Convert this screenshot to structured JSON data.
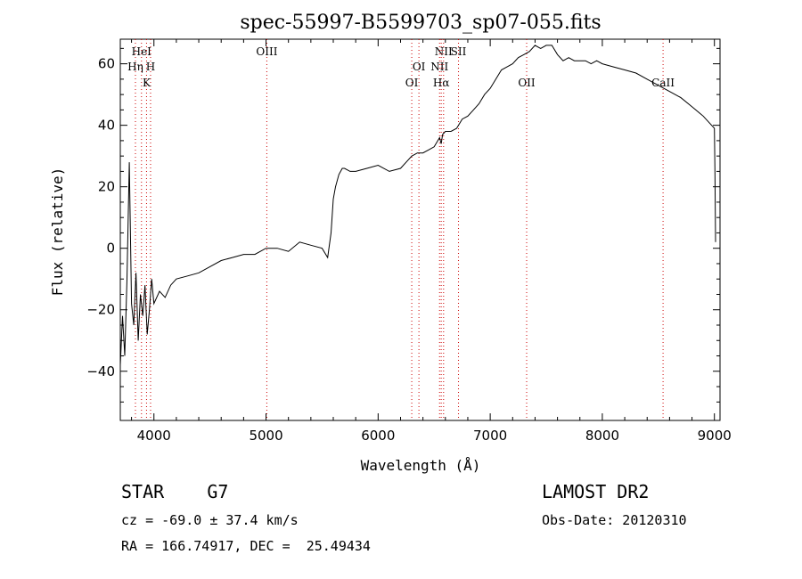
{
  "chart_data": {
    "type": "line",
    "title": "spec-55997-B5599703_sp07-055.fits",
    "xlabel": "Wavelength (Å)",
    "ylabel": "Flux (relative)",
    "xlim": [
      3700,
      9050
    ],
    "ylim": [
      -56,
      68
    ],
    "xticks": [
      4000,
      5000,
      6000,
      7000,
      8000,
      9000
    ],
    "yticks": [
      -40,
      -20,
      0,
      20,
      40,
      60
    ],
    "grid": false,
    "line_color": "#000000",
    "marker_color": "#cc0000",
    "spectral_lines": [
      {
        "label": "HeI",
        "wavelength": 3889,
        "tier": 0
      },
      {
        "label": "Hη",
        "wavelength": 3835,
        "tier": 1
      },
      {
        "label": "H",
        "wavelength": 3970,
        "tier": 1
      },
      {
        "label": "K",
        "wavelength": 3934,
        "tier": 2
      },
      {
        "label": "OIII",
        "wavelength": 5007,
        "tier": 0
      },
      {
        "label": "OI",
        "wavelength": 6364,
        "tier": 1
      },
      {
        "label": "OI",
        "wavelength": 6300,
        "tier": 2
      },
      {
        "label": "NII",
        "wavelength": 6584,
        "tier": 0
      },
      {
        "label": "SII",
        "wavelength": 6717,
        "tier": 0
      },
      {
        "label": "NII",
        "wavelength": 6548,
        "tier": 1
      },
      {
        "label": "Hα",
        "wavelength": 6563,
        "tier": 2
      },
      {
        "label": "OII",
        "wavelength": 7325,
        "tier": 2
      },
      {
        "label": "CaII",
        "wavelength": 8542,
        "tier": 2
      }
    ],
    "series": [
      {
        "x": [
          3700,
          3720,
          3740,
          3760,
          3780,
          3800,
          3820,
          3840,
          3860,
          3880,
          3900,
          3920,
          3940,
          3960,
          3980,
          4000,
          4050,
          4100,
          4150,
          4200,
          4300,
          4400,
          4500,
          4600,
          4700,
          4800,
          4900,
          5000,
          5100,
          5200,
          5300,
          5400,
          5500,
          5550,
          5580,
          5600,
          5620,
          5650,
          5680,
          5700,
          5750,
          5800,
          5900,
          6000,
          6100,
          6200,
          6250,
          6300,
          6350,
          6400,
          6450,
          6500,
          6548,
          6563,
          6575,
          6600,
          6650,
          6700,
          6750,
          6800,
          6850,
          6900,
          6950,
          7000,
          7050,
          7100,
          7150,
          7200,
          7250,
          7300,
          7350,
          7400,
          7450,
          7500,
          7550,
          7600,
          7650,
          7700,
          7750,
          7800,
          7850,
          7900,
          7950,
          8000,
          8100,
          8200,
          8300,
          8400,
          8500,
          8600,
          8700,
          8800,
          8900,
          8950,
          9000,
          9005,
          9010
        ],
        "y": [
          -38,
          -22,
          -35,
          -10,
          28,
          -18,
          -25,
          -8,
          -30,
          -15,
          -22,
          -12,
          -28,
          -20,
          -10,
          -18,
          -14,
          -16,
          -12,
          -10,
          -9,
          -8,
          -6,
          -4,
          -3,
          -2,
          -2,
          0,
          0,
          -1,
          2,
          1,
          0,
          -3,
          5,
          16,
          20,
          24,
          26,
          26,
          25,
          25,
          26,
          27,
          25,
          26,
          28,
          30,
          31,
          31,
          32,
          33,
          36,
          34,
          37,
          38,
          38,
          39,
          42,
          43,
          45,
          47,
          50,
          52,
          55,
          58,
          59,
          60,
          62,
          63,
          64,
          66,
          65,
          66,
          66,
          63,
          61,
          62,
          61,
          61,
          61,
          60,
          61,
          60,
          59,
          58,
          57,
          55,
          53,
          51,
          49,
          46,
          43,
          41,
          39,
          25,
          2
        ]
      }
    ]
  },
  "footer": {
    "object_label": "STAR    G7",
    "cz_text": "cz = -69.0 ± 37.4 km/s",
    "radec_text": "RA = 166.74917, DEC =  25.49434",
    "survey_label": "LAMOST DR2",
    "obs_date_text": "Obs-Date: 20120310"
  }
}
